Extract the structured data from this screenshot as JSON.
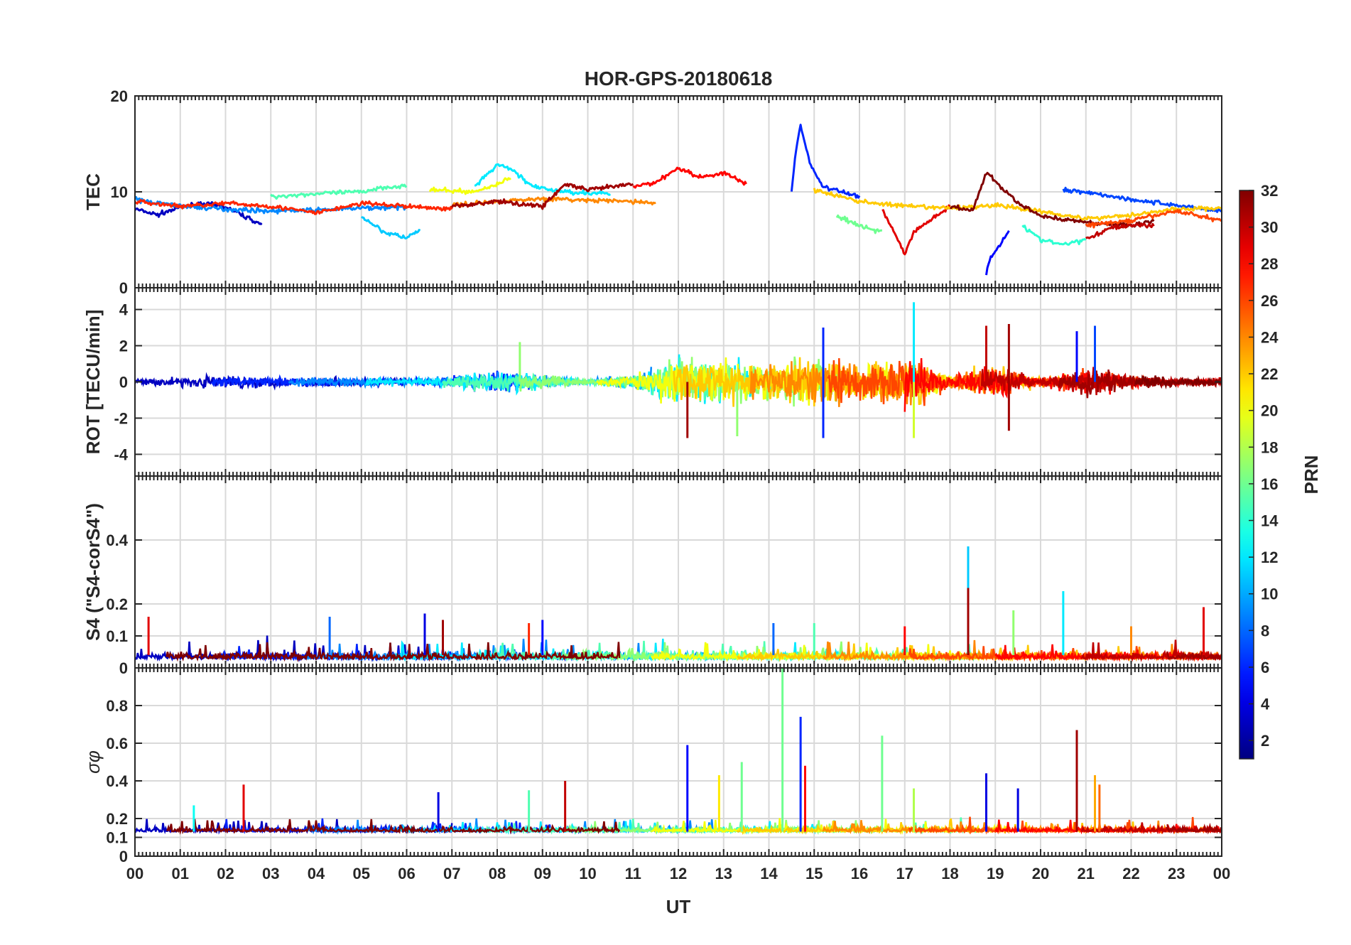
{
  "chart_data": {
    "type": "line",
    "title": "HOR-GPS-20180618",
    "xlabel": "UT",
    "x_tick_labels": [
      "00",
      "01",
      "02",
      "03",
      "04",
      "05",
      "06",
      "07",
      "08",
      "09",
      "10",
      "11",
      "12",
      "13",
      "14",
      "15",
      "16",
      "17",
      "18",
      "19",
      "20",
      "21",
      "22",
      "23",
      "00"
    ],
    "xlim": [
      0,
      24
    ],
    "grid": true,
    "colorbar": {
      "label": "PRN",
      "range": [
        1,
        32
      ],
      "tick_labels": [
        "2",
        "4",
        "6",
        "8",
        "10",
        "12",
        "14",
        "16",
        "18",
        "20",
        "22",
        "24",
        "26",
        "28",
        "30",
        "32"
      ],
      "tick_values": [
        2,
        4,
        6,
        8,
        10,
        12,
        14,
        16,
        18,
        20,
        22,
        24,
        26,
        28,
        30,
        32
      ],
      "colormap": "jet",
      "colors": [
        "#00008f",
        "#0000ff",
        "#0080ff",
        "#00ffff",
        "#80ff80",
        "#ffff00",
        "#ff8000",
        "#ff0000",
        "#800000"
      ]
    },
    "panels": [
      {
        "id": "tec",
        "ylabel": "TEC",
        "ylim": [
          0,
          20
        ],
        "y_ticks": [
          0,
          10,
          20
        ],
        "y_tick_labels": [
          "0",
          "10",
          "20"
        ],
        "minor_ticks_top": true,
        "series": [
          {
            "prn": 3,
            "x": [
              0.0,
              0.5,
              1.0,
              1.5,
              2.0,
              2.8
            ],
            "y": [
              8.2,
              7.6,
              8.4,
              8.8,
              8.4,
              6.6
            ]
          },
          {
            "prn": 9,
            "x": [
              0.0,
              1.0,
              2.0,
              3.0,
              4.0,
              5.0,
              6.0
            ],
            "y": [
              9.2,
              8.5,
              8.2,
              8.0,
              8.1,
              8.3,
              8.4
            ]
          },
          {
            "prn": 11,
            "x": [
              5.0,
              5.5,
              6.0,
              6.3
            ],
            "y": [
              7.5,
              5.8,
              5.2,
              6.0
            ]
          },
          {
            "prn": 12,
            "x": [
              7.5,
              8.0,
              8.3,
              8.8,
              9.5,
              10.5
            ],
            "y": [
              10.5,
              12.8,
              12.4,
              10.5,
              10.0,
              9.8
            ]
          },
          {
            "prn": 15,
            "x": [
              3.0,
              4.0,
              5.0,
              5.5,
              6.0
            ],
            "y": [
              9.5,
              9.8,
              10.0,
              10.5,
              10.6
            ]
          },
          {
            "prn": 20,
            "x": [
              6.5,
              7.5,
              8.0,
              8.3
            ],
            "y": [
              10.2,
              10.0,
              10.8,
              11.5
            ]
          },
          {
            "prn": 24,
            "x": [
              7.0,
              8.0,
              9.0,
              10.0,
              11.0,
              11.5
            ],
            "y": [
              8.6,
              9.0,
              9.3,
              9.1,
              9.0,
              8.8
            ]
          },
          {
            "prn": 27,
            "x": [
              0.0,
              1.0,
              2.0,
              3.0,
              4.0,
              5.0,
              6.0,
              7.0
            ],
            "y": [
              9.0,
              8.5,
              8.8,
              8.5,
              7.8,
              8.8,
              8.5,
              8.2
            ]
          },
          {
            "prn": 31,
            "x": [
              7.0,
              8.0,
              9.0,
              9.5,
              10.0,
              10.5,
              11.0
            ],
            "y": [
              8.5,
              9.0,
              8.5,
              10.8,
              10.2,
              10.5,
              10.8
            ]
          },
          {
            "prn": 28,
            "x": [
              11.0,
              11.5,
              12.0,
              12.5,
              13.0,
              13.5
            ],
            "y": [
              10.5,
              11.0,
              12.5,
              11.5,
              12.0,
              10.8
            ]
          },
          {
            "prn": 6,
            "x": [
              14.5,
              14.6,
              14.7,
              14.9,
              15.2,
              16.0
            ],
            "y": [
              10.0,
              14.5,
              17.0,
              13.0,
              10.5,
              9.5
            ]
          },
          {
            "prn": 29,
            "x": [
              16.5,
              16.8,
              17.0,
              17.2,
              17.6,
              18.0
            ],
            "y": [
              8.2,
              5.5,
              3.5,
              5.8,
              7.2,
              8.5
            ]
          },
          {
            "prn": 5,
            "x": [
              18.8,
              18.9,
              19.1,
              19.3
            ],
            "y": [
              1.5,
              3.2,
              4.5,
              6.0
            ]
          },
          {
            "prn": 14,
            "x": [
              19.6,
              20.0,
              20.5,
              21.0
            ],
            "y": [
              6.5,
              5.0,
              4.5,
              5.0
            ]
          },
          {
            "prn": 7,
            "x": [
              20.5,
              21.0,
              21.5,
              22.0,
              23.0,
              24.0
            ],
            "y": [
              10.2,
              10.0,
              9.6,
              9.2,
              8.6,
              8.0
            ]
          },
          {
            "prn": 22,
            "x": [
              15.0,
              16.0,
              17.0,
              18.0,
              19.0,
              20.0,
              21.0,
              22.0,
              23.0,
              24.0
            ],
            "y": [
              10.2,
              9.0,
              8.5,
              8.3,
              8.6,
              8.0,
              7.2,
              7.6,
              8.2,
              8.3
            ]
          },
          {
            "prn": 32,
            "x": [
              18.0,
              18.5,
              18.8,
              19.5,
              20.0,
              21.0,
              22.0,
              22.5
            ],
            "y": [
              8.5,
              8.0,
              12.0,
              8.8,
              7.5,
              6.8,
              6.5,
              7.0
            ]
          },
          {
            "prn": 30,
            "x": [
              21.0,
              21.5,
              22.0,
              22.5
            ],
            "y": [
              5.0,
              6.2,
              6.5,
              6.5
            ]
          },
          {
            "prn": 26,
            "x": [
              21.0,
              22.0,
              23.0,
              24.0
            ],
            "y": [
              6.5,
              7.0,
              8.0,
              7.0
            ]
          },
          {
            "prn": 16,
            "x": [
              15.5,
              16.0,
              16.5
            ],
            "y": [
              7.5,
              6.5,
              5.8
            ]
          }
        ]
      },
      {
        "id": "rot",
        "ylabel": "ROT [TECU/min]",
        "ylim": [
          -5.2,
          5.2
        ],
        "y_ticks": [
          -4,
          -2,
          0,
          2,
          4
        ],
        "y_tick_labels": [
          "-4",
          "-2",
          "0",
          "2",
          "4"
        ],
        "minor_ticks_top": true,
        "activity_envelope": {
          "hours": [
            0,
            2,
            3,
            6,
            7,
            8,
            9,
            10,
            11,
            12,
            13,
            14,
            15,
            16,
            17,
            17.5,
            18,
            19,
            20,
            21,
            22,
            23,
            24
          ],
          "amplitude": [
            0.3,
            0.6,
            0.5,
            0.3,
            0.5,
            1.0,
            0.6,
            0.2,
            0.6,
            2.2,
            2.0,
            1.5,
            2.2,
            1.6,
            2.4,
            1.6,
            0.5,
            1.5,
            0.4,
            1.2,
            0.6,
            0.3,
            0.3
          ]
        },
        "spikes": [
          {
            "x": 12.2,
            "y": -3.1,
            "prn": 31
          },
          {
            "x": 13.3,
            "y": -3.0,
            "prn": 17
          },
          {
            "x": 15.2,
            "y": 3.0,
            "prn": 6
          },
          {
            "x": 15.2,
            "y": -3.1,
            "prn": 6
          },
          {
            "x": 17.2,
            "y": 4.4,
            "prn": 12
          },
          {
            "x": 17.2,
            "y": -3.1,
            "prn": 19
          },
          {
            "x": 18.8,
            "y": 3.1,
            "prn": 30
          },
          {
            "x": 19.3,
            "y": 3.2,
            "prn": 31
          },
          {
            "x": 19.3,
            "y": -2.7,
            "prn": 31
          },
          {
            "x": 21.2,
            "y": 3.1,
            "prn": 7
          },
          {
            "x": 20.8,
            "y": 2.8,
            "prn": 5
          },
          {
            "x": 8.5,
            "y": 2.2,
            "prn": 17
          }
        ]
      },
      {
        "id": "s4",
        "ylabel": "S4 (\"S4-corS4\")",
        "ylim": [
          0,
          0.6
        ],
        "y_ticks": [
          0,
          0.1,
          0.2,
          0.4
        ],
        "y_tick_labels": [
          "0",
          "0.1",
          "0.2",
          "0.4"
        ],
        "minor_ticks_top": true,
        "baseline": 0.04,
        "spikes": [
          {
            "x": 0.3,
            "y": 0.16,
            "prn": 29
          },
          {
            "x": 4.3,
            "y": 0.16,
            "prn": 8
          },
          {
            "x": 6.4,
            "y": 0.17,
            "prn": 4
          },
          {
            "x": 6.8,
            "y": 0.15,
            "prn": 31
          },
          {
            "x": 8.7,
            "y": 0.14,
            "prn": 27
          },
          {
            "x": 9.0,
            "y": 0.15,
            "prn": 5
          },
          {
            "x": 14.1,
            "y": 0.14,
            "prn": 8
          },
          {
            "x": 15.0,
            "y": 0.14,
            "prn": 15
          },
          {
            "x": 17.0,
            "y": 0.13,
            "prn": 28
          },
          {
            "x": 18.4,
            "y": 0.38,
            "prn": 11
          },
          {
            "x": 18.4,
            "y": 0.25,
            "prn": 31
          },
          {
            "x": 19.4,
            "y": 0.18,
            "prn": 17
          },
          {
            "x": 20.5,
            "y": 0.24,
            "prn": 12
          },
          {
            "x": 22.0,
            "y": 0.13,
            "prn": 24
          },
          {
            "x": 23.6,
            "y": 0.19,
            "prn": 29
          }
        ]
      },
      {
        "id": "sigma_phi",
        "ylabel": "σφ",
        "ylim": [
          0,
          1.0
        ],
        "y_ticks": [
          0,
          0.1,
          0.2,
          0.4,
          0.6,
          0.8
        ],
        "y_tick_labels": [
          "0",
          "0.1",
          "0.2",
          "0.4",
          "0.6",
          "0.8"
        ],
        "minor_ticks_top": true,
        "baseline": 0.13,
        "spikes": [
          {
            "x": 1.3,
            "y": 0.27,
            "prn": 13
          },
          {
            "x": 2.4,
            "y": 0.38,
            "prn": 29
          },
          {
            "x": 6.7,
            "y": 0.34,
            "prn": 4
          },
          {
            "x": 8.7,
            "y": 0.35,
            "prn": 15
          },
          {
            "x": 9.5,
            "y": 0.4,
            "prn": 30
          },
          {
            "x": 12.2,
            "y": 0.59,
            "prn": 5
          },
          {
            "x": 12.9,
            "y": 0.43,
            "prn": 21
          },
          {
            "x": 13.4,
            "y": 0.5,
            "prn": 16
          },
          {
            "x": 14.3,
            "y": 1.0,
            "prn": 16
          },
          {
            "x": 14.7,
            "y": 0.74,
            "prn": 6
          },
          {
            "x": 14.8,
            "y": 0.48,
            "prn": 28
          },
          {
            "x": 16.5,
            "y": 0.64,
            "prn": 16
          },
          {
            "x": 17.2,
            "y": 0.36,
            "prn": 18
          },
          {
            "x": 18.8,
            "y": 0.44,
            "prn": 4
          },
          {
            "x": 19.5,
            "y": 0.36,
            "prn": 4
          },
          {
            "x": 20.8,
            "y": 0.67,
            "prn": 31
          },
          {
            "x": 21.2,
            "y": 0.43,
            "prn": 23
          },
          {
            "x": 21.3,
            "y": 0.38,
            "prn": 25
          }
        ]
      }
    ]
  }
}
